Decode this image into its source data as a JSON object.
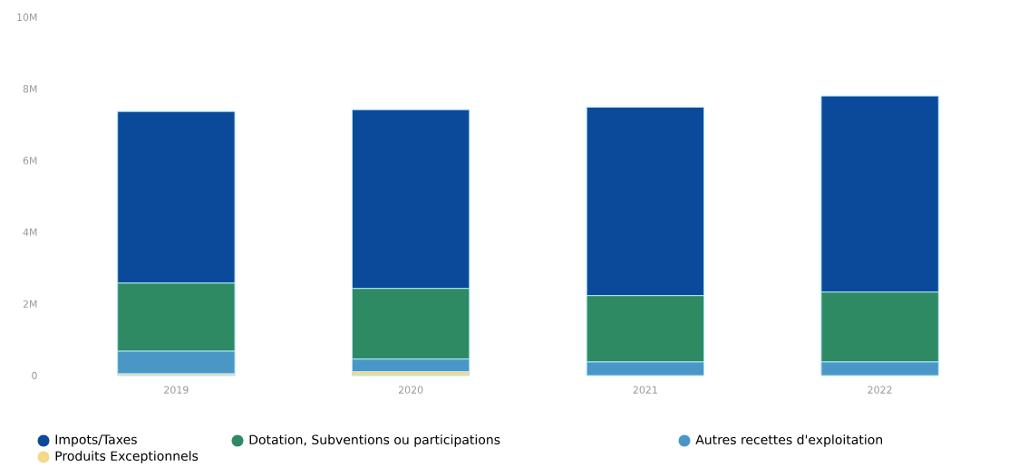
{
  "chart_data": {
    "type": "bar",
    "stacked": true,
    "categories": [
      "2019",
      "2020",
      "2021",
      "2022"
    ],
    "series": [
      {
        "name": "Produits Exceptionnels",
        "color": "#f3d98a",
        "values": [
          50000,
          110000,
          0,
          0
        ]
      },
      {
        "name": "Autres recettes d'exploitation",
        "color": "#4a97c7",
        "values": [
          630000,
          350000,
          380000,
          380000
        ]
      },
      {
        "name": "Dotation, Subventions ou participations",
        "color": "#2e8a62",
        "values": [
          1900000,
          1970000,
          1850000,
          1950000
        ]
      },
      {
        "name": "Impots/Taxes",
        "color": "#0b4a9a",
        "values": [
          4790000,
          4990000,
          5260000,
          5470000
        ]
      }
    ],
    "ylim": [
      0,
      10000000
    ],
    "yticks": [
      0,
      {
        "value": 2000000,
        "label": "2M"
      },
      {
        "value": 4000000,
        "label": "4M"
      },
      {
        "value": 6000000,
        "label": "6M"
      },
      {
        "value": 8000000,
        "label": "8M"
      },
      {
        "value": 10000000,
        "label": "10M"
      }
    ],
    "grid": false,
    "legend": "bottom"
  }
}
